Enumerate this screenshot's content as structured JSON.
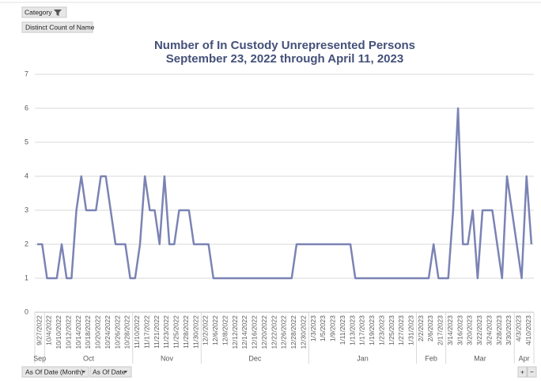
{
  "chart_data": {
    "type": "line",
    "title": "Number of In Custody Unrepresented Persons",
    "subtitle": "September 23, 2022 through April 11, 2023",
    "controls": {
      "filter": "Category",
      "value_field": "Distinct Count of Name",
      "axis_fields": [
        "As Of Date (Month)",
        "As Of Date"
      ],
      "expand": "+",
      "collapse": "−"
    },
    "color": "#7b83b4",
    "ylim": [
      0,
      7
    ],
    "yticks": [
      0,
      1,
      2,
      3,
      4,
      5,
      6,
      7
    ],
    "grid": true,
    "x_groups": [
      "Sep",
      "Oct",
      "Nov",
      "Dec",
      "Jan",
      "Feb",
      "Mar",
      "Apr"
    ],
    "categories": [
      "9/27/2022",
      null,
      "10/4/2022",
      null,
      "10/10/2022",
      null,
      "10/12/2022",
      null,
      "10/14/2022",
      null,
      "10/18/2022",
      null,
      "10/20/2022",
      null,
      "10/24/2022",
      null,
      "10/26/2022",
      null,
      "10/28/2022",
      null,
      "11/10/2022",
      null,
      "11/17/2022",
      null,
      "11/21/2022",
      null,
      "11/23/2022",
      null,
      "11/25/2022",
      null,
      "11/28/2022",
      null,
      "11/30/2022",
      null,
      "12/2/2022",
      null,
      "12/6/2022",
      null,
      "12/8/2022",
      null,
      "12/12/2022",
      null,
      "12/14/2022",
      null,
      "12/16/2022",
      null,
      "12/20/2022",
      null,
      "12/22/2022",
      null,
      "12/26/2022",
      null,
      "12/28/2022",
      null,
      "12/30/2022",
      null,
      "1/3/2023",
      null,
      "1/5/2023",
      null,
      "1/9/2023",
      null,
      "1/11/2023",
      null,
      "1/13/2023",
      null,
      "1/17/2023",
      null,
      "1/19/2023",
      null,
      "1/23/2023",
      null,
      "1/25/2023",
      null,
      "1/27/2023",
      null,
      "1/31/2023",
      null,
      "2/2/2023",
      null,
      "2/6/2023",
      null,
      "2/17/2023",
      null,
      "3/14/2023",
      null,
      "3/16/2023",
      null,
      "3/20/2023",
      null,
      "3/22/2023",
      null,
      "3/24/2023",
      null,
      "3/28/2023",
      null,
      "3/30/2023",
      null,
      "4/3/2023",
      null,
      "4/10/2023",
      null
    ],
    "values": [
      2,
      2,
      1,
      1,
      1,
      2,
      1,
      1,
      3,
      4,
      3,
      3,
      3,
      4,
      4,
      3,
      2,
      2,
      2,
      1,
      1,
      2,
      4,
      3,
      3,
      2,
      4,
      2,
      2,
      3,
      3,
      3,
      2,
      2,
      2,
      2,
      1,
      1,
      1,
      1,
      1,
      1,
      1,
      1,
      1,
      1,
      1,
      1,
      1,
      1,
      1,
      1,
      1,
      2,
      2,
      2,
      2,
      2,
      2,
      2,
      2,
      2,
      2,
      2,
      2,
      1,
      1,
      1,
      1,
      1,
      1,
      1,
      1,
      1,
      1,
      1,
      1,
      1,
      1,
      1,
      1,
      2,
      1,
      1,
      1,
      3,
      6,
      2,
      2,
      3,
      1,
      3,
      3,
      3,
      2,
      1,
      4,
      3,
      2,
      1,
      4,
      2
    ]
  }
}
